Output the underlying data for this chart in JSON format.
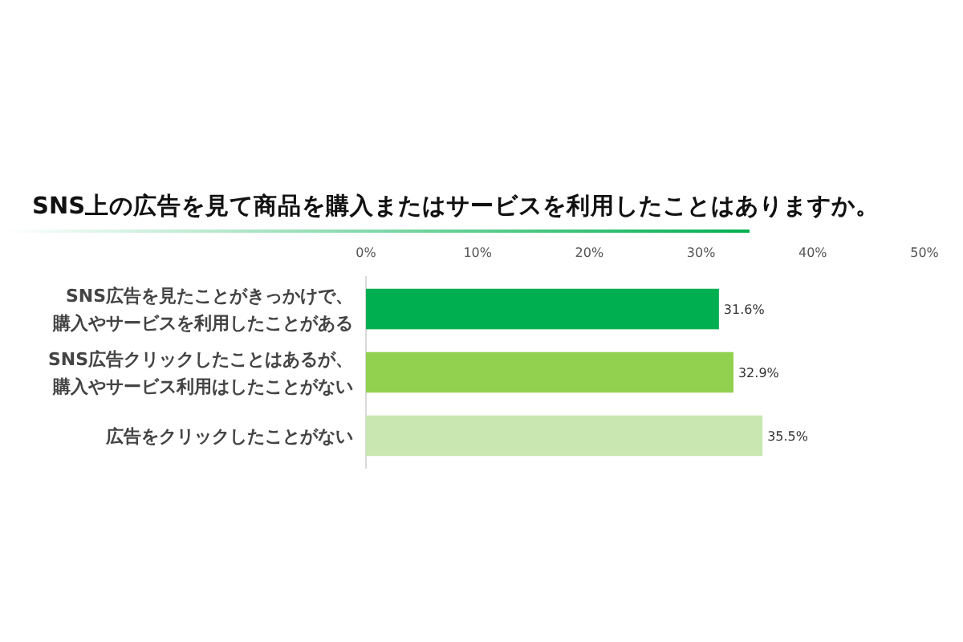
{
  "chart_data": {
    "type": "bar",
    "orientation": "horizontal",
    "title": "SNS上の広告を見て商品を購入またはサービスを利用したことはありますか。",
    "categories": [
      "SNS広告を見たことがきっかけで、購入やサービスを利用したことがある",
      "SNS広告クリックしたことはあるが、購入やサービス利用はしたことがない",
      "広告をクリックしたことがない"
    ],
    "values": [
      31.6,
      32.9,
      35.5
    ],
    "colors": [
      "#00b050",
      "#92d050",
      "#c9e7b0"
    ],
    "value_labels": [
      "31.6%",
      "32.9%",
      "35.5%"
    ],
    "xlim": [
      0,
      50
    ],
    "xticks": [
      {
        "value": 0,
        "label": "0%"
      },
      {
        "value": 10,
        "label": "10%"
      },
      {
        "value": 20,
        "label": "20%"
      },
      {
        "value": 30,
        "label": "30%"
      },
      {
        "value": 40,
        "label": "40%"
      },
      {
        "value": 50,
        "label": "50%"
      }
    ],
    "grid": false
  }
}
